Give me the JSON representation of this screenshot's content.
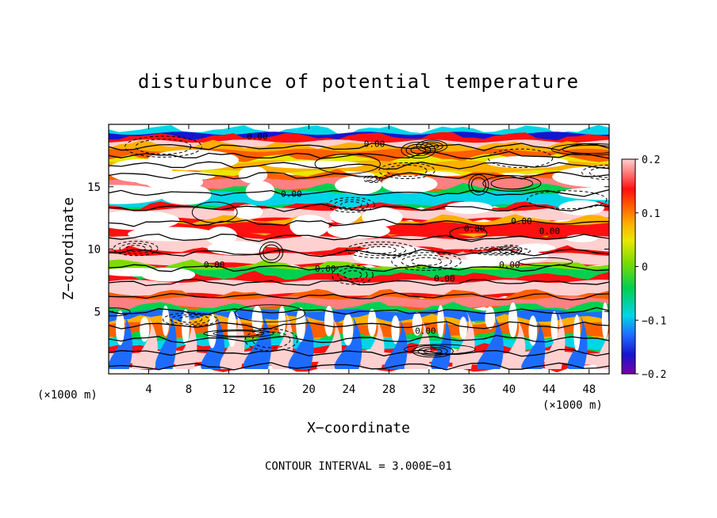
{
  "chart_data": {
    "type": "heatmap",
    "title": "disturbunce of potential temperature",
    "xlabel": "X−coordinate",
    "ylabel": "Z−coordinate",
    "x_unit": "(×1000 m)",
    "y_unit": "(×1000 m)",
    "xlim": [
      0,
      50
    ],
    "ylim": [
      0,
      20
    ],
    "x_ticks": [
      "4",
      "8",
      "12",
      "16",
      "20",
      "24",
      "28",
      "32",
      "36",
      "40",
      "44",
      "48"
    ],
    "x_tick_values": [
      4,
      8,
      12,
      16,
      20,
      24,
      28,
      32,
      36,
      40,
      44,
      48
    ],
    "y_ticks": [
      "5",
      "10",
      "15"
    ],
    "y_tick_values": [
      5,
      10,
      15
    ],
    "colorbar": {
      "range": [
        -0.2,
        0.2
      ],
      "ticks": [
        "0.2",
        "0.1",
        "0",
        "−0.1",
        "−0.2"
      ],
      "tick_values": [
        0.2,
        0.1,
        0,
        -0.1,
        -0.2
      ],
      "colors": [
        "#7a00a8",
        "#1515d0",
        "#1e6cff",
        "#00d5e8",
        "#00d050",
        "#7ddc00",
        "#e8e800",
        "#ffb000",
        "#ff6000",
        "#ff1010",
        "#ff8080",
        "#ffd0d0"
      ]
    },
    "contour_labels": [
      "0.00",
      "0.00",
      "0.00",
      "0.00",
      "0.00",
      "0.00",
      "0.00",
      "0.00",
      "0.00",
      "0.00",
      "0.00"
    ],
    "bands": [
      {
        "z": 18.9,
        "anom": -0.15
      },
      {
        "z": 18.2,
        "anom": 0.2
      },
      {
        "z": 17.4,
        "anom": 0.1
      },
      {
        "z": 16.6,
        "anom": 0.05
      },
      {
        "z": 15.2,
        "anom": 0.18
      },
      {
        "z": 14.0,
        "anom": -0.08
      },
      {
        "z": 12.8,
        "anom": 0.2
      },
      {
        "z": 11.6,
        "anom": 0.12
      },
      {
        "z": 10.4,
        "anom": 0.2
      },
      {
        "z": 9.2,
        "anom": 0.2
      },
      {
        "z": 8.0,
        "anom": -0.05
      },
      {
        "z": 6.9,
        "anom": 0.2
      },
      {
        "z": 5.7,
        "anom": 0.15
      },
      {
        "z": 4.6,
        "anom": -0.12
      },
      {
        "z": 3.5,
        "anom": 0.1
      },
      {
        "z": 2.4,
        "anom": -0.1
      },
      {
        "z": 1.3,
        "anom": 0.2
      }
    ],
    "footnote": "CONTOUR INTERVAL = 3.000E−01"
  }
}
